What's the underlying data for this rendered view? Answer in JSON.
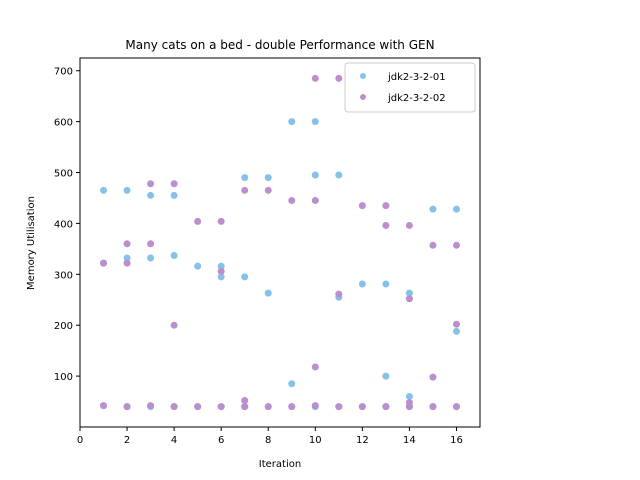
{
  "chart_data": {
    "type": "scatter",
    "title": "Many cats on a bed - double Performance with GEN",
    "xlabel": "Iteration",
    "ylabel": "Memory Utilisation",
    "xlim": [
      0,
      17
    ],
    "ylim": [
      0,
      725
    ],
    "xticks": [
      0,
      2,
      4,
      6,
      8,
      10,
      12,
      14,
      16
    ],
    "yticks": [
      100,
      200,
      300,
      400,
      500,
      600,
      700
    ],
    "grid": false,
    "legend_position": "top-right",
    "series": [
      {
        "name": "jdk2-3-2-01",
        "color": "#85c1e9",
        "points": [
          [
            1,
            465
          ],
          [
            1,
            322
          ],
          [
            1,
            42
          ],
          [
            2,
            465
          ],
          [
            2,
            332
          ],
          [
            2,
            40
          ],
          [
            3,
            455
          ],
          [
            3,
            332
          ],
          [
            3,
            40
          ],
          [
            4,
            455
          ],
          [
            4,
            337
          ],
          [
            4,
            40
          ],
          [
            5,
            316
          ],
          [
            5,
            40
          ],
          [
            6,
            316
          ],
          [
            6,
            295
          ],
          [
            6,
            40
          ],
          [
            7,
            490
          ],
          [
            7,
            295
          ],
          [
            7,
            40
          ],
          [
            8,
            490
          ],
          [
            8,
            263
          ],
          [
            8,
            40
          ],
          [
            9,
            600
          ],
          [
            9,
            85
          ],
          [
            9,
            40
          ],
          [
            10,
            600
          ],
          [
            10,
            495
          ],
          [
            10,
            40
          ],
          [
            11,
            495
          ],
          [
            11,
            255
          ],
          [
            11,
            40
          ],
          [
            12,
            281
          ],
          [
            12,
            40
          ],
          [
            13,
            281
          ],
          [
            13,
            100
          ],
          [
            13,
            40
          ],
          [
            14,
            263
          ],
          [
            14,
            60
          ],
          [
            14,
            40
          ],
          [
            15,
            428
          ],
          [
            15,
            40
          ],
          [
            16,
            428
          ],
          [
            16,
            188
          ],
          [
            16,
            40
          ]
        ]
      },
      {
        "name": "jdk2-3-2-02",
        "color": "#bb8fce",
        "points": [
          [
            1,
            322
          ],
          [
            1,
            42
          ],
          [
            2,
            360
          ],
          [
            2,
            322
          ],
          [
            2,
            40
          ],
          [
            3,
            478
          ],
          [
            3,
            360
          ],
          [
            3,
            42
          ],
          [
            4,
            478
          ],
          [
            4,
            200
          ],
          [
            4,
            40
          ],
          [
            5,
            404
          ],
          [
            5,
            40
          ],
          [
            6,
            404
          ],
          [
            6,
            306
          ],
          [
            6,
            40
          ],
          [
            7,
            465
          ],
          [
            7,
            52
          ],
          [
            7,
            40
          ],
          [
            8,
            465
          ],
          [
            8,
            40
          ],
          [
            9,
            445
          ],
          [
            9,
            40
          ],
          [
            10,
            685
          ],
          [
            10,
            445
          ],
          [
            10,
            118
          ],
          [
            10,
            42
          ],
          [
            11,
            685
          ],
          [
            11,
            261
          ],
          [
            11,
            40
          ],
          [
            12,
            435
          ],
          [
            12,
            40
          ],
          [
            13,
            435
          ],
          [
            13,
            396
          ],
          [
            13,
            40
          ],
          [
            14,
            396
          ],
          [
            14,
            252
          ],
          [
            14,
            48
          ],
          [
            14,
            40
          ],
          [
            15,
            357
          ],
          [
            15,
            98
          ],
          [
            15,
            40
          ],
          [
            16,
            357
          ],
          [
            16,
            202
          ],
          [
            16,
            40
          ]
        ]
      }
    ]
  }
}
